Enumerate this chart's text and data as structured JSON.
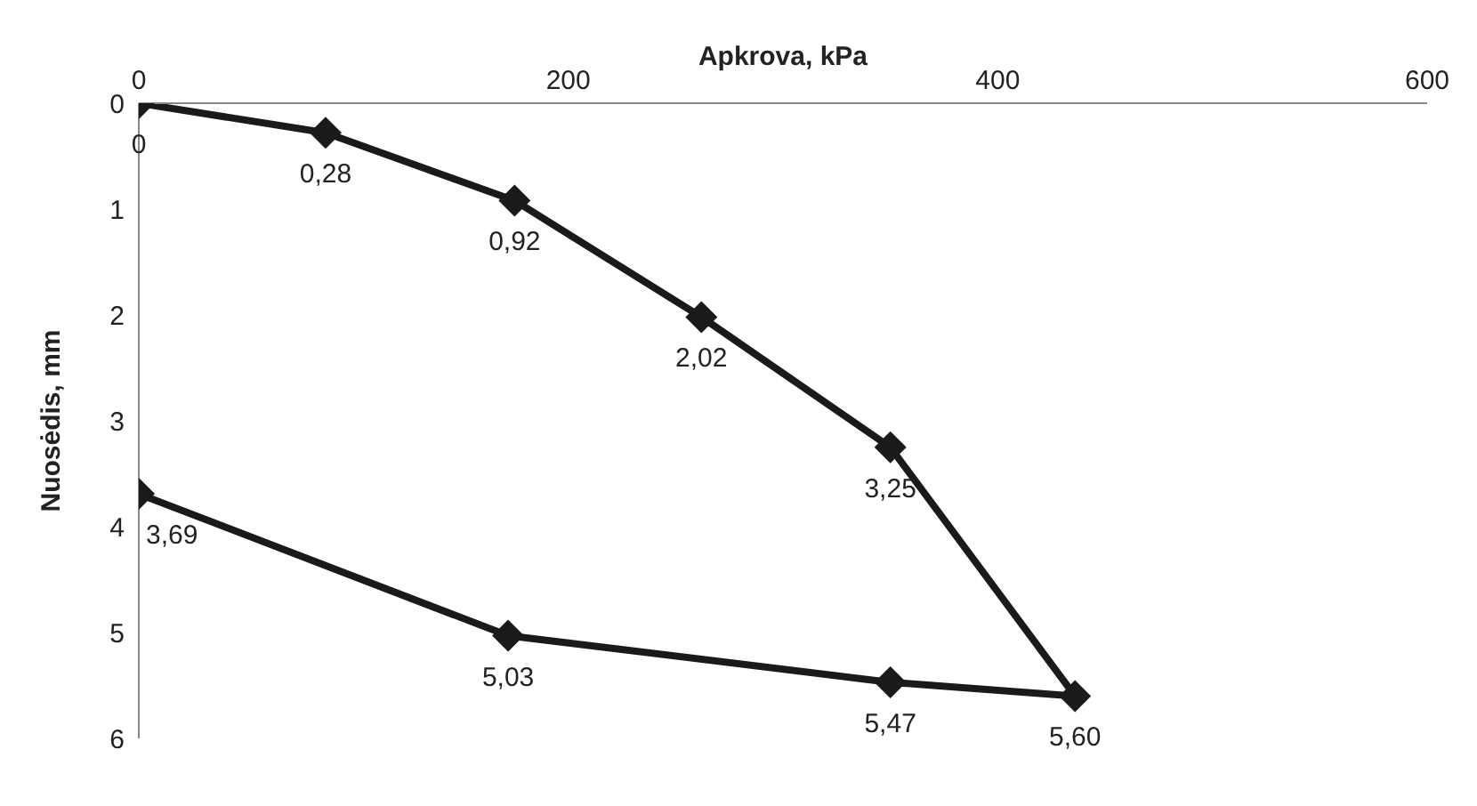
{
  "chart_data": {
    "type": "line",
    "xlabel": "Apkrova, kPa",
    "ylabel": "Nuosėdis, mm",
    "x": [
      0,
      87,
      175,
      262,
      350,
      436,
      350,
      172,
      0
    ],
    "series": [
      {
        "color": "#1a1a1a",
        "values": [
          0,
          0.28,
          0.92,
          2.02,
          3.25,
          5.6,
          5.47,
          5.03,
          3.69
        ],
        "value_labels": [
          "0",
          "0,28",
          "0,92",
          "2,02",
          "3,25",
          "5,60",
          "5,47",
          "5,03",
          "3,69"
        ]
      }
    ],
    "xlim": [
      0,
      600
    ],
    "xticks": [
      0,
      200,
      400,
      600
    ],
    "ylim": [
      6,
      0
    ],
    "yticks": [
      0,
      1,
      2,
      3,
      4,
      5,
      6
    ],
    "marker": "diamond",
    "line_style": "solid",
    "grid": false,
    "legend": false
  }
}
